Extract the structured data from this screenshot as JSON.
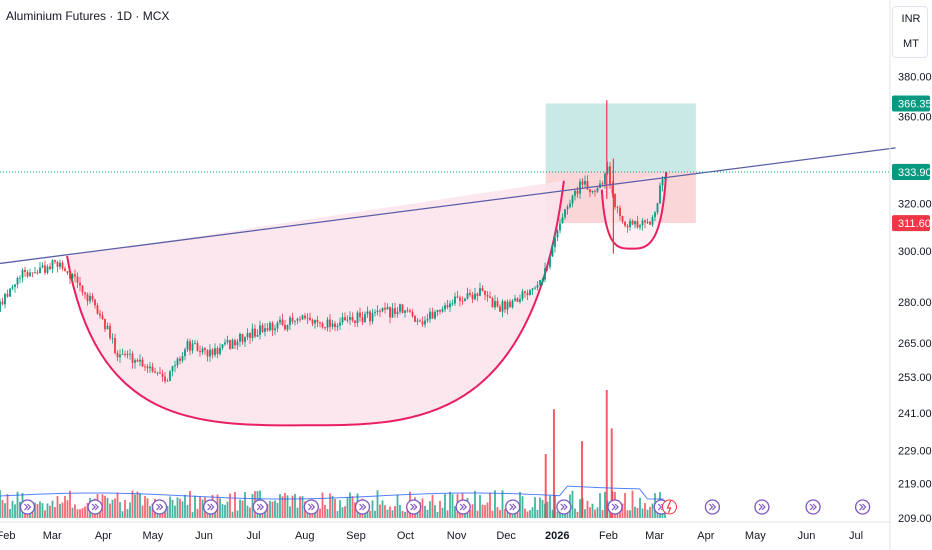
{
  "header": {
    "title": "Aluminium Futures · 1D · MCX"
  },
  "unit_selector": {
    "currency": "INR",
    "unit": "MT"
  },
  "colors": {
    "up": "#089981",
    "down": "#f23645",
    "trendline": "#5b5ea6",
    "cup_stroke": "#e91e63",
    "cup_fill": "#fce4ec",
    "target_zone": "#b2dfdb",
    "stop_zone": "#f8c8cc",
    "event_icon": "#7e57c2"
  },
  "chart_data": {
    "type": "candlestick",
    "symbol": "Aluminium Futures",
    "interval": "1D",
    "exchange": "MCX",
    "scale": "log",
    "x_axis_labels": [
      "Feb",
      "Mar",
      "Apr",
      "May",
      "Jun",
      "Jul",
      "Aug",
      "Sep",
      "Oct",
      "Nov",
      "Dec",
      "2026",
      "Feb",
      "Mar",
      "Apr",
      "May",
      "Jun",
      "Jul"
    ],
    "y_axis_labels": [
      "380.00",
      "360.00",
      "320.00",
      "300.00",
      "280.00",
      "265.00",
      "253.00",
      "241.00",
      "229.00",
      "219.00",
      "209.00"
    ],
    "y_range": [
      207,
      390
    ],
    "price_labels": [
      {
        "value": "366.35",
        "role": "target",
        "color": "#089981"
      },
      {
        "value": "334.00",
        "role": "trendline",
        "color": "#787b86"
      },
      {
        "value": "333.90",
        "role": "last_price",
        "color": "#089981"
      },
      {
        "value": "311.60",
        "role": "stop",
        "color": "#f23645"
      }
    ],
    "trendline": {
      "from": {
        "date": "2025-01-16",
        "price": 294
      },
      "to": {
        "date": "2026-07-25",
        "price": 345
      }
    },
    "cup": {
      "start": {
        "date": "2025-03-10",
        "price": 298
      },
      "bottom": {
        "date": "2025-08-10",
        "price": 237
      },
      "end": {
        "date": "2026-01-05",
        "price": 330
      }
    },
    "handle": {
      "start": {
        "date": "2026-01-28",
        "price": 326
      },
      "bottom": {
        "date": "2026-02-16",
        "price": 301
      },
      "end": {
        "date": "2026-03-08",
        "price": 334
      }
    },
    "target_zone": {
      "from_date": "2025-12-25",
      "to_date": "2026-03-26",
      "top": 366.35,
      "bottom": 334.0
    },
    "stop_zone": {
      "from_date": "2025-12-25",
      "to_date": "2026-03-26",
      "top": 334.0,
      "bottom": 311.6
    },
    "close_path": [
      {
        "date": "2025-01-22",
        "close": 272
      },
      {
        "date": "2025-02-10",
        "close": 290
      },
      {
        "date": "2025-03-06",
        "close": 295
      },
      {
        "date": "2025-03-15",
        "close": 288
      },
      {
        "date": "2025-03-30",
        "close": 275
      },
      {
        "date": "2025-04-09",
        "close": 262
      },
      {
        "date": "2025-04-25",
        "close": 258
      },
      {
        "date": "2025-05-10",
        "close": 253
      },
      {
        "date": "2025-05-22",
        "close": 264
      },
      {
        "date": "2025-06-05",
        "close": 261
      },
      {
        "date": "2025-06-22",
        "close": 266
      },
      {
        "date": "2025-07-10",
        "close": 271
      },
      {
        "date": "2025-07-30",
        "close": 273
      },
      {
        "date": "2025-08-20",
        "close": 272
      },
      {
        "date": "2025-09-10",
        "close": 275
      },
      {
        "date": "2025-09-28",
        "close": 277
      },
      {
        "date": "2025-10-12",
        "close": 273
      },
      {
        "date": "2025-10-28",
        "close": 280
      },
      {
        "date": "2025-11-15",
        "close": 284
      },
      {
        "date": "2025-11-22",
        "close": 280
      },
      {
        "date": "2025-11-28",
        "close": 278
      },
      {
        "date": "2025-12-15",
        "close": 285
      },
      {
        "date": "2025-12-26",
        "close": 293
      },
      {
        "date": "2026-01-02",
        "close": 312
      },
      {
        "date": "2026-01-10",
        "close": 322
      },
      {
        "date": "2026-01-15",
        "close": 329
      },
      {
        "date": "2026-01-22",
        "close": 325
      },
      {
        "date": "2026-01-28",
        "close": 330
      },
      {
        "date": "2026-01-31",
        "close": 338
      },
      {
        "date": "2026-02-04",
        "close": 320
      },
      {
        "date": "2026-02-12",
        "close": 312
      },
      {
        "date": "2026-02-18",
        "close": 310
      },
      {
        "date": "2026-02-26",
        "close": 311
      },
      {
        "date": "2026-03-04",
        "close": 325
      },
      {
        "date": "2026-03-08",
        "close": 333.9
      }
    ],
    "volume_spikes": [
      {
        "date": "2025-12-25",
        "relative": 0.5
      },
      {
        "date": "2025-12-30",
        "relative": 0.85
      },
      {
        "date": "2026-01-16",
        "relative": 0.6
      },
      {
        "date": "2026-01-31",
        "relative": 1.0
      },
      {
        "date": "2026-02-03",
        "relative": 0.7
      }
    ],
    "event_icon_dates": [
      "2025-02-14",
      "2025-03-27",
      "2025-05-05",
      "2025-06-05",
      "2025-07-05",
      "2025-08-05",
      "2025-09-05",
      "2025-10-06",
      "2025-11-05",
      "2025-12-05",
      "2026-01-05",
      "2026-02-05",
      "2026-03-05",
      "2026-04-05",
      "2026-05-05",
      "2026-06-05",
      "2026-07-05"
    ]
  }
}
